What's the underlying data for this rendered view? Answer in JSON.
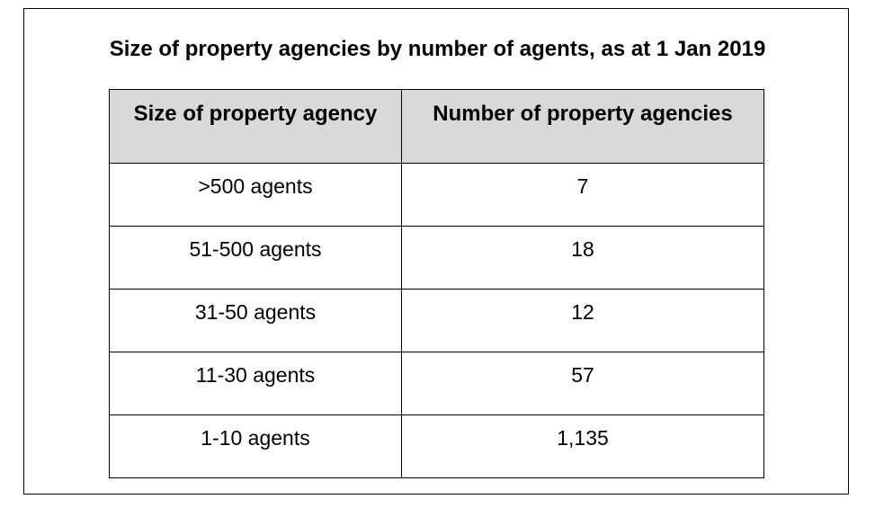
{
  "title": "Size of property agencies by number of agents, as at 1 Jan 2019",
  "table": {
    "headers": [
      "Size of property agency",
      "Number of property agencies"
    ],
    "rows": [
      {
        "size": ">500 agents",
        "count": "7"
      },
      {
        "size": "51-500 agents",
        "count": "18"
      },
      {
        "size": "31-50 agents",
        "count": "12"
      },
      {
        "size": "11-30 agents",
        "count": "57"
      },
      {
        "size": "1-10 agents",
        "count": "1,135"
      }
    ]
  }
}
